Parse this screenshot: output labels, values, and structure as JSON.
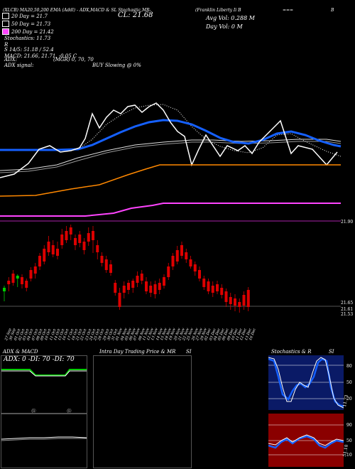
{
  "header": {
    "studies_label": "(XLCB) MA20,50,200 EMA (Addl) - ADX,MACD & SL Stochastic,MR-",
    "ticker_full": "(Franklin Liberty Ii B",
    "ticker_right": "B",
    "ticker_dots": "===",
    "cl_label": "CL: 21.68",
    "avg_vol": "Avg Vol: 0.288  M",
    "day_vol": "Day Vol: 0  M"
  },
  "legend": [
    {
      "label": "20  Day = 21.7",
      "color": "#ffffff"
    },
    {
      "label": "50  Day = 21.73",
      "color": "#ffffff"
    },
    {
      "label": "200  Day = 21.42",
      "color": "#ff44ff"
    }
  ],
  "stats": {
    "stochastics": "Stochastics: 11.73",
    "r_line": "R",
    "s_line": "S 14/5: 51.18 / 52.4",
    "macd": "MACD: 21.66, 21.71, -0.05 C",
    "adx": "ADX:",
    "adx_signal": "ADX  signal:",
    "mgr": "(MGR) 0,  70,  70",
    "buy": "BUY Slowing @ 0%"
  },
  "price_labels": {
    "top": "21.90",
    "mid": "21.65",
    "low1": "21.61",
    "low2": "21.53"
  },
  "dates": [
    "27 Sep",
    "30 Sep",
    "01 Oct",
    "02 Oct",
    "03 Oct",
    "04 Oct",
    "07 Oct",
    "08 Oct",
    "09 Oct",
    "10 Oct",
    "11 Oct",
    "14 Oct",
    "15 Oct",
    "16 Oct",
    "17 Oct",
    "18 Oct",
    "21 Oct",
    "22 Oct",
    "23 Oct",
    "24 Oct",
    "25 Oct",
    "28 Oct",
    "29 Oct",
    "30 Oct",
    "31 Oct",
    "01 Nov",
    "04 Nov",
    "05 Nov",
    "06 Nov",
    "07 Nov",
    "08 Nov",
    "11 Nov",
    "12 Nov",
    "13 Nov",
    "14 Nov",
    "15 Nov",
    "18 Nov",
    "19 Nov",
    "20 Nov",
    "21 Nov",
    "22 Nov",
    "25 Nov",
    "26 Nov",
    "27 Nov",
    "29 Nov",
    "02 Dec",
    "03 Dec",
    "04 Dec",
    "05 Dec",
    "06 Dec",
    "09 Dec",
    "10 Dec",
    "11 Dec",
    "12 Dec",
    "13 Dec",
    "16 Dec"
  ],
  "panels": {
    "adx_title": "ADX  & MACD",
    "adx_readout": "ADX: 0   -DI: 70   -DI: 70",
    "intraday_title": "Intra  Day Trading Price  & MR",
    "intraday_si": "SI",
    "stoch_title": "Stochastics & R",
    "stoch_si": "SI",
    "stoch_axis": [
      "80",
      "50",
      "20"
    ],
    "stoch_value": "11.73",
    "mr_axis": [
      "90",
      "50",
      "10"
    ],
    "mr_value": "51.18"
  },
  "chart_data": {
    "type": "candlestick",
    "candles_up_down": "green=up, red=down",
    "price_range": [
      21.5,
      21.95
    ],
    "close": 21.68
  },
  "colors": {
    "up": "#00cc00",
    "down": "#dd0000",
    "ema_fast": "#1560ff",
    "ema200": "#ff44ff",
    "orange": "#ff8800"
  }
}
